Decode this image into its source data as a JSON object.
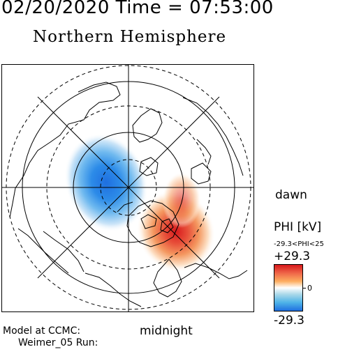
{
  "header": {
    "datetime": "02/20/2020 Time = 07:53:00",
    "title": "Northern Hemisphere"
  },
  "map": {
    "labels": {
      "dawn": "dawn",
      "midnight": "midnight"
    },
    "model_line": "Model at CCMC:",
    "run_line": "Weimer_05 Run:"
  },
  "colorbar": {
    "title": "PHI [kV]",
    "range": "-29.3<PHI<25",
    "max": "+29.3",
    "zero": "0",
    "min": "-29.3",
    "colors": {
      "max": "#d7191c",
      "mid_warm": "#fdae61",
      "zero": "#ffffff",
      "mid_cool": "#4eb3e8",
      "min": "#1f6fe0"
    }
  }
}
